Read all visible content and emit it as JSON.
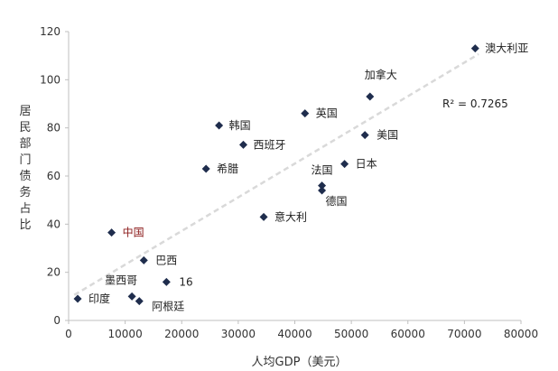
{
  "chart_data": {
    "type": "scatter",
    "xlabel": "人均GDP（美元）",
    "ylabel": "居民部门债务占比",
    "xlim": [
      0,
      80000
    ],
    "ylim": [
      0,
      120
    ],
    "x_ticks": [
      "0",
      "10000",
      "20000",
      "30000",
      "40000",
      "50000",
      "60000",
      "70000",
      "80000"
    ],
    "y_ticks": [
      "0",
      "20",
      "40",
      "60",
      "80",
      "100",
      "120"
    ],
    "grid": false,
    "trendline": {
      "style": "dashed-linear",
      "r2_label": "R² = 0.7265",
      "color": "#d9d9d9"
    },
    "marker_color": "#1f2d4d",
    "highlight_color": "#8b1a1a",
    "points": [
      {
        "label": "印度",
        "x": 1600,
        "y": 9
      },
      {
        "label": "中国",
        "x": 7600,
        "y": 36.5,
        "highlight": true
      },
      {
        "label": "墨西哥",
        "x": 11200,
        "y": 10
      },
      {
        "label": "阿根廷",
        "x": 12500,
        "y": 8
      },
      {
        "label": "巴西",
        "x": 13300,
        "y": 25
      },
      {
        "label": "16",
        "x": 17300,
        "y": 16
      },
      {
        "label": "希腊",
        "x": 24300,
        "y": 63
      },
      {
        "label": "韩国",
        "x": 26600,
        "y": 81
      },
      {
        "label": "西班牙",
        "x": 30900,
        "y": 73
      },
      {
        "label": "意大利",
        "x": 34500,
        "y": 43
      },
      {
        "label": "英国",
        "x": 41800,
        "y": 86
      },
      {
        "label": "法国",
        "x": 44800,
        "y": 56
      },
      {
        "label": "德国",
        "x": 44800,
        "y": 54
      },
      {
        "label": "日本",
        "x": 48800,
        "y": 65
      },
      {
        "label": "美国",
        "x": 52400,
        "y": 77
      },
      {
        "label": "加拿大",
        "x": 53300,
        "y": 93
      },
      {
        "label": "澳大利亚",
        "x": 71900,
        "y": 113
      }
    ]
  }
}
